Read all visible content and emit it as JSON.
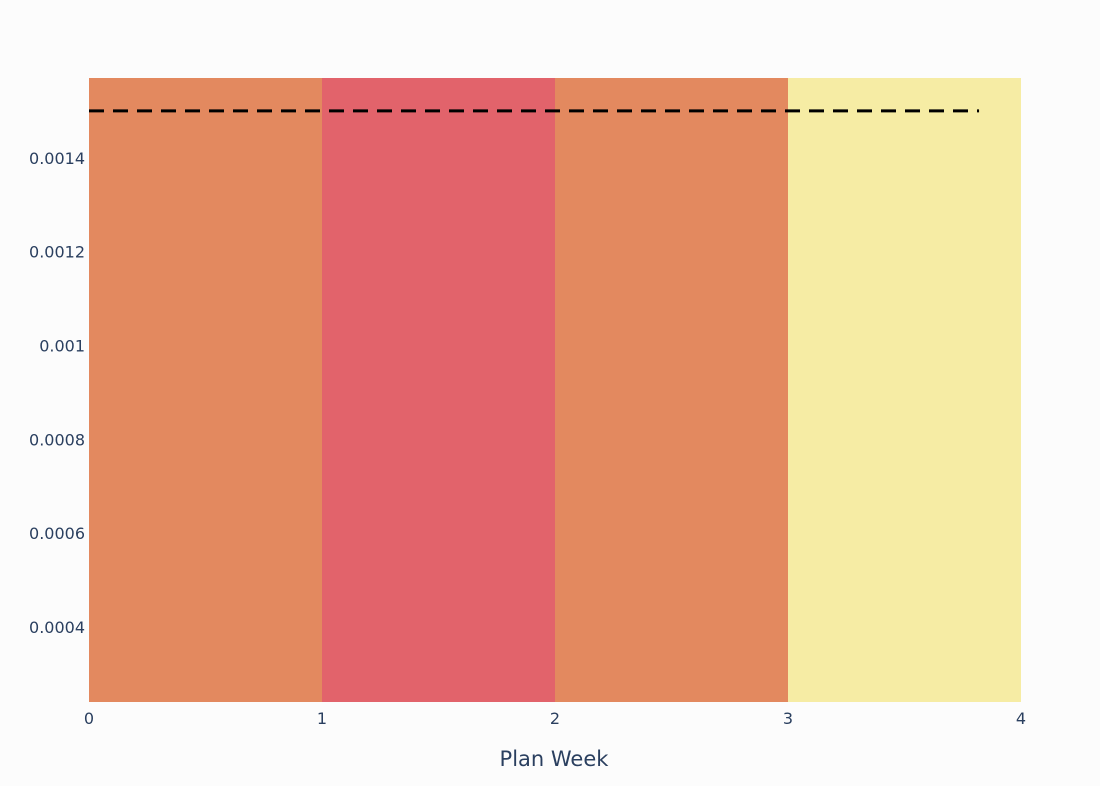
{
  "chart_data": {
    "type": "bar",
    "title": "",
    "xlabel": "Plan Week",
    "ylabel": "",
    "xlim": [
      0,
      4
    ],
    "ylim": [
      0.00024,
      0.00157
    ],
    "x_ticks": [
      {
        "value": 0,
        "label": "0"
      },
      {
        "value": 1,
        "label": "1"
      },
      {
        "value": 2,
        "label": "2"
      },
      {
        "value": 3,
        "label": "3"
      },
      {
        "value": 4,
        "label": "4"
      }
    ],
    "y_ticks": [
      {
        "value": 0.0004,
        "label": "0.0004"
      },
      {
        "value": 0.0006,
        "label": "0.0006"
      },
      {
        "value": 0.0008,
        "label": "0.0008"
      },
      {
        "value": 0.001,
        "label": "0.001"
      },
      {
        "value": 0.0012,
        "label": "0.0012"
      },
      {
        "value": 0.0014,
        "label": "0.0014"
      }
    ],
    "bands": [
      {
        "x0": 0,
        "x1": 1,
        "color": "#e3895f"
      },
      {
        "x0": 1,
        "x1": 2,
        "color": "#e2636b"
      },
      {
        "x0": 2,
        "x1": 3,
        "color": "#e3895f"
      },
      {
        "x0": 3,
        "x1": 4,
        "color": "#f6eca4"
      }
    ],
    "threshold": {
      "y": 0.0015,
      "x0": 0,
      "x1": 3.82,
      "color": "#000000",
      "style": "dashed"
    },
    "grid": false,
    "legend": "none"
  }
}
